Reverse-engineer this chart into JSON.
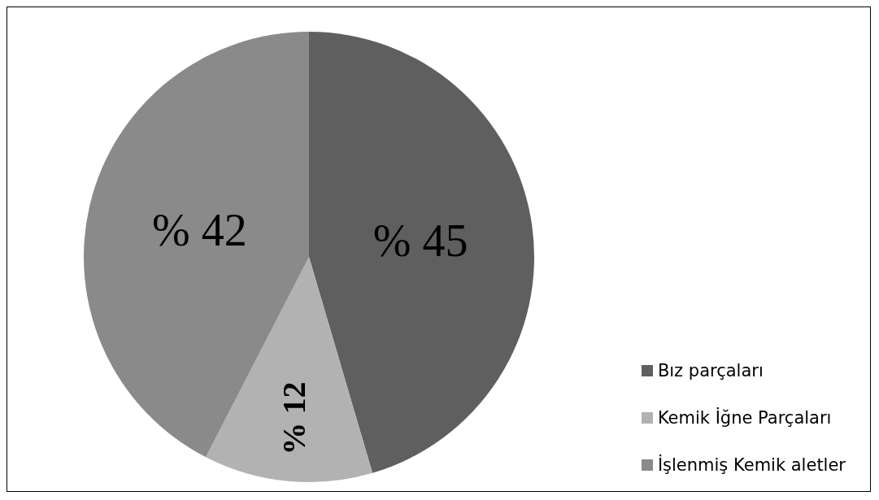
{
  "chart_data": {
    "type": "pie",
    "categories": [
      "Bız parçaları",
      "Kemik İğne Parçaları",
      "İşlenmiş Kemik aletler"
    ],
    "values": [
      45,
      12,
      42
    ],
    "colors": [
      "#5f5f5f",
      "#b2b2b2",
      "#8a8a8a"
    ],
    "value_labels": [
      "% 45",
      "% 12",
      "% 42"
    ],
    "legend": "right"
  }
}
